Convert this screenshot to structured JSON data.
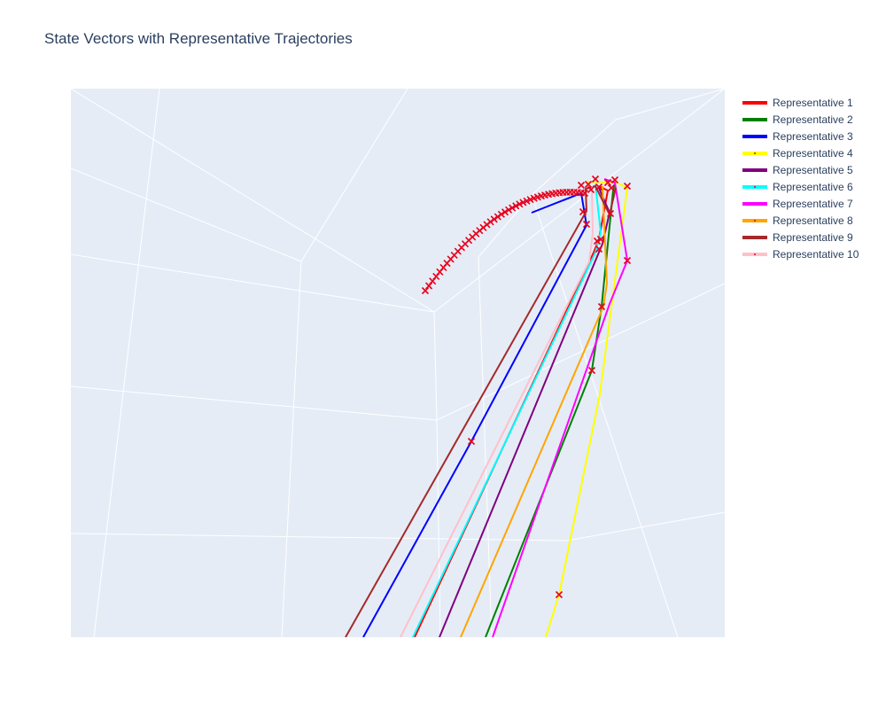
{
  "chart_data": {
    "type": "scatter3d",
    "title": "State Vectors with Representative Trajectories",
    "grid": true,
    "legend_position": "top-right",
    "background_color": "#e5ecf6",
    "marker_color": "#e8001c",
    "series": [
      {
        "name": "Representative 1",
        "color": "#ff0000",
        "mode": "lines"
      },
      {
        "name": "Representative 2",
        "color": "#008000",
        "mode": "lines"
      },
      {
        "name": "Representative 3",
        "color": "#0000ff",
        "mode": "lines"
      },
      {
        "name": "Representative 4",
        "color": "#ffff00",
        "mode": "lines+markers"
      },
      {
        "name": "Representative 5",
        "color": "#800080",
        "mode": "lines"
      },
      {
        "name": "Representative 6",
        "color": "#00ffff",
        "mode": "lines+markers"
      },
      {
        "name": "Representative 7",
        "color": "#ff00ff",
        "mode": "lines"
      },
      {
        "name": "Representative 8",
        "color": "#ffa500",
        "mode": "lines+markers"
      },
      {
        "name": "Representative 9",
        "color": "#a52a2a",
        "mode": "lines"
      },
      {
        "name": "Representative 10",
        "color": "#ffc0cb",
        "mode": "lines+markers"
      }
    ]
  }
}
